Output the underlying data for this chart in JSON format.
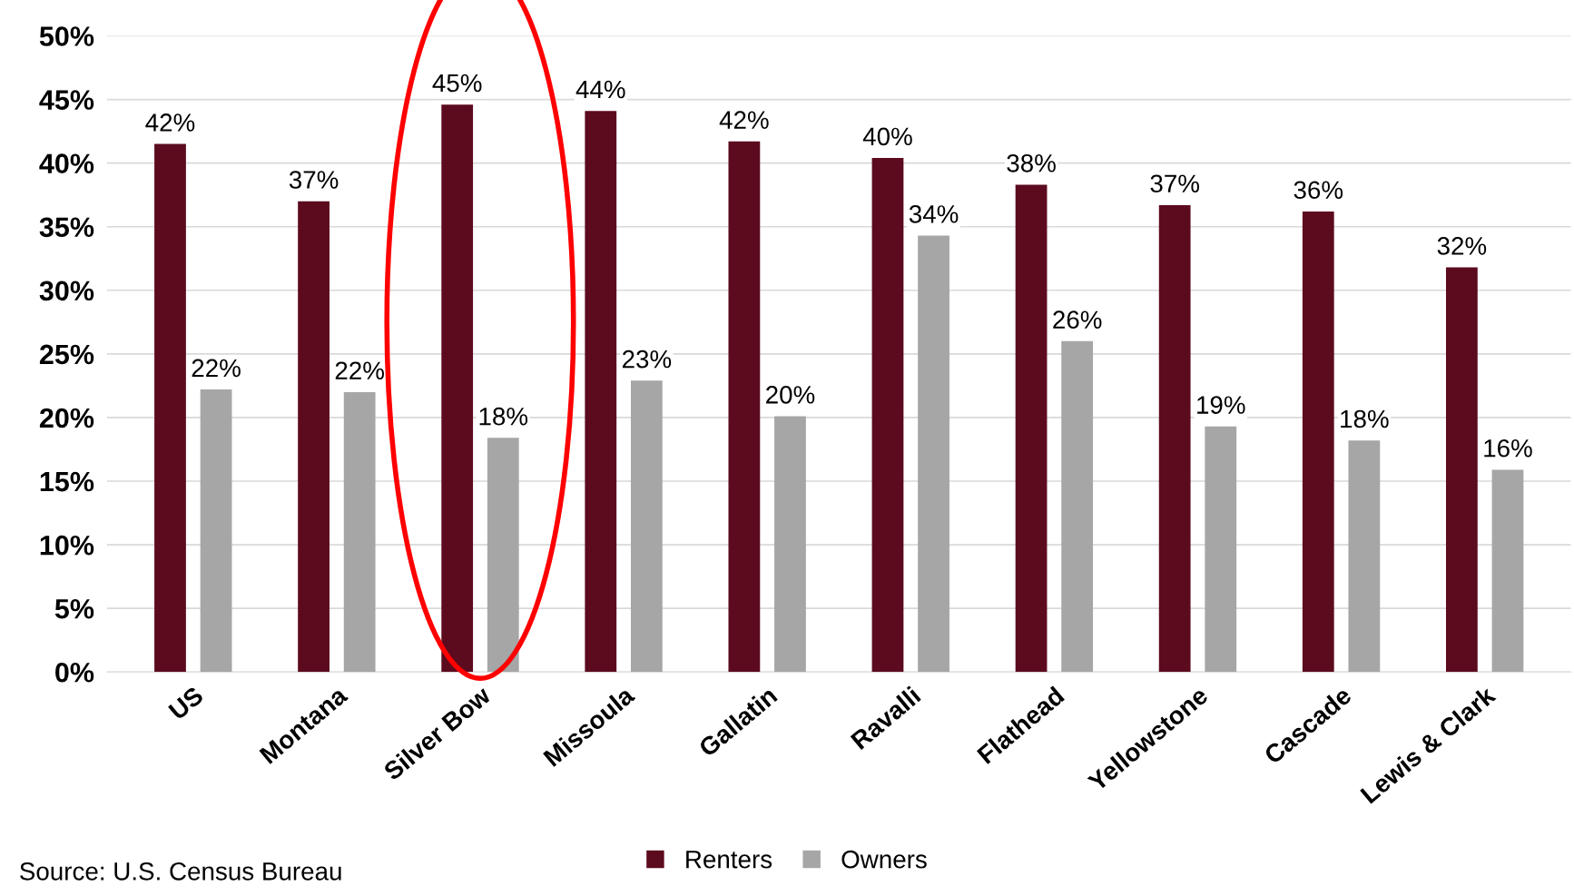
{
  "chart_data": {
    "type": "bar",
    "categories": [
      "US",
      "Montana",
      "Silver Bow",
      "Missoula",
      "Gallatin",
      "Ravalli",
      "Flathead",
      "Yellowstone",
      "Cascade",
      "Lewis & Clark"
    ],
    "series": [
      {
        "name": "Renters",
        "color": "#5c0a1e",
        "values": [
          41.5,
          37.0,
          44.6,
          44.1,
          41.7,
          40.4,
          38.3,
          36.7,
          36.2,
          31.8
        ],
        "value_labels": [
          "42%",
          "37%",
          "45%",
          "44%",
          "42%",
          "40%",
          "38%",
          "37%",
          "36%",
          "32%"
        ]
      },
      {
        "name": "Owners",
        "color": "#a6a6a6",
        "values": [
          22.2,
          22.0,
          18.4,
          22.9,
          20.1,
          34.3,
          26.0,
          19.3,
          18.2,
          15.9
        ],
        "value_labels": [
          "22%",
          "22%",
          "18%",
          "23%",
          "20%",
          "34%",
          "26%",
          "19%",
          "18%",
          "16%"
        ]
      }
    ],
    "ylim": [
      0,
      50
    ],
    "yticks": [
      {
        "value": 0,
        "label": "0%"
      },
      {
        "value": 5,
        "label": "5%"
      },
      {
        "value": 10,
        "label": "10%"
      },
      {
        "value": 15,
        "label": "15%"
      },
      {
        "value": 20,
        "label": "20%"
      },
      {
        "value": 25,
        "label": "25%"
      },
      {
        "value": 30,
        "label": "30%"
      },
      {
        "value": 35,
        "label": "35%"
      },
      {
        "value": 40,
        "label": "40%"
      },
      {
        "value": 45,
        "label": "45%"
      },
      {
        "value": 50,
        "label": "50%"
      }
    ],
    "grid": "y",
    "legend": "bottom",
    "annotations": [
      "Source: U.S. Census Bureau"
    ]
  }
}
